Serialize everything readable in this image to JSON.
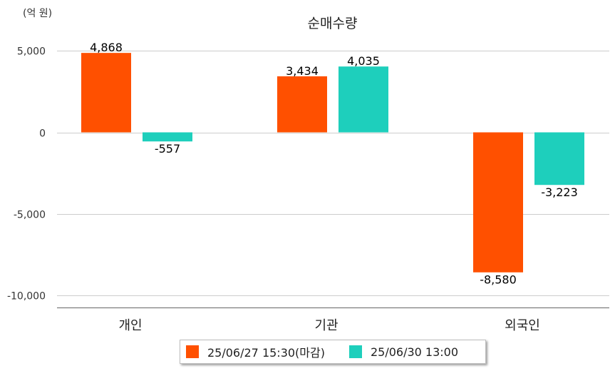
{
  "unit_label": "(억 원)",
  "chart_data": {
    "type": "bar",
    "title": "순매수량",
    "unit": "(억 원)",
    "categories": [
      "개인",
      "기관",
      "외국인"
    ],
    "series": [
      {
        "name": "25/06/27 15:30(마감)",
        "color": "#FF5000",
        "values": [
          4868,
          3434,
          -8580
        ]
      },
      {
        "name": "25/06/30 13:00",
        "color": "#1ECFBC",
        "values": [
          -557,
          4035,
          -3223
        ]
      }
    ],
    "ylim": [
      -10000,
      5000
    ],
    "yticks": [
      5000,
      0,
      -5000,
      -10000
    ],
    "ytick_labels": [
      "5,000",
      "0",
      "-5,000",
      "-10,000"
    ],
    "data_labels": [
      [
        "4,868",
        "3,434",
        "-8,580"
      ],
      [
        "-557",
        "4,035",
        "-3,223"
      ]
    ],
    "grid": true,
    "legend_position": "bottom"
  }
}
